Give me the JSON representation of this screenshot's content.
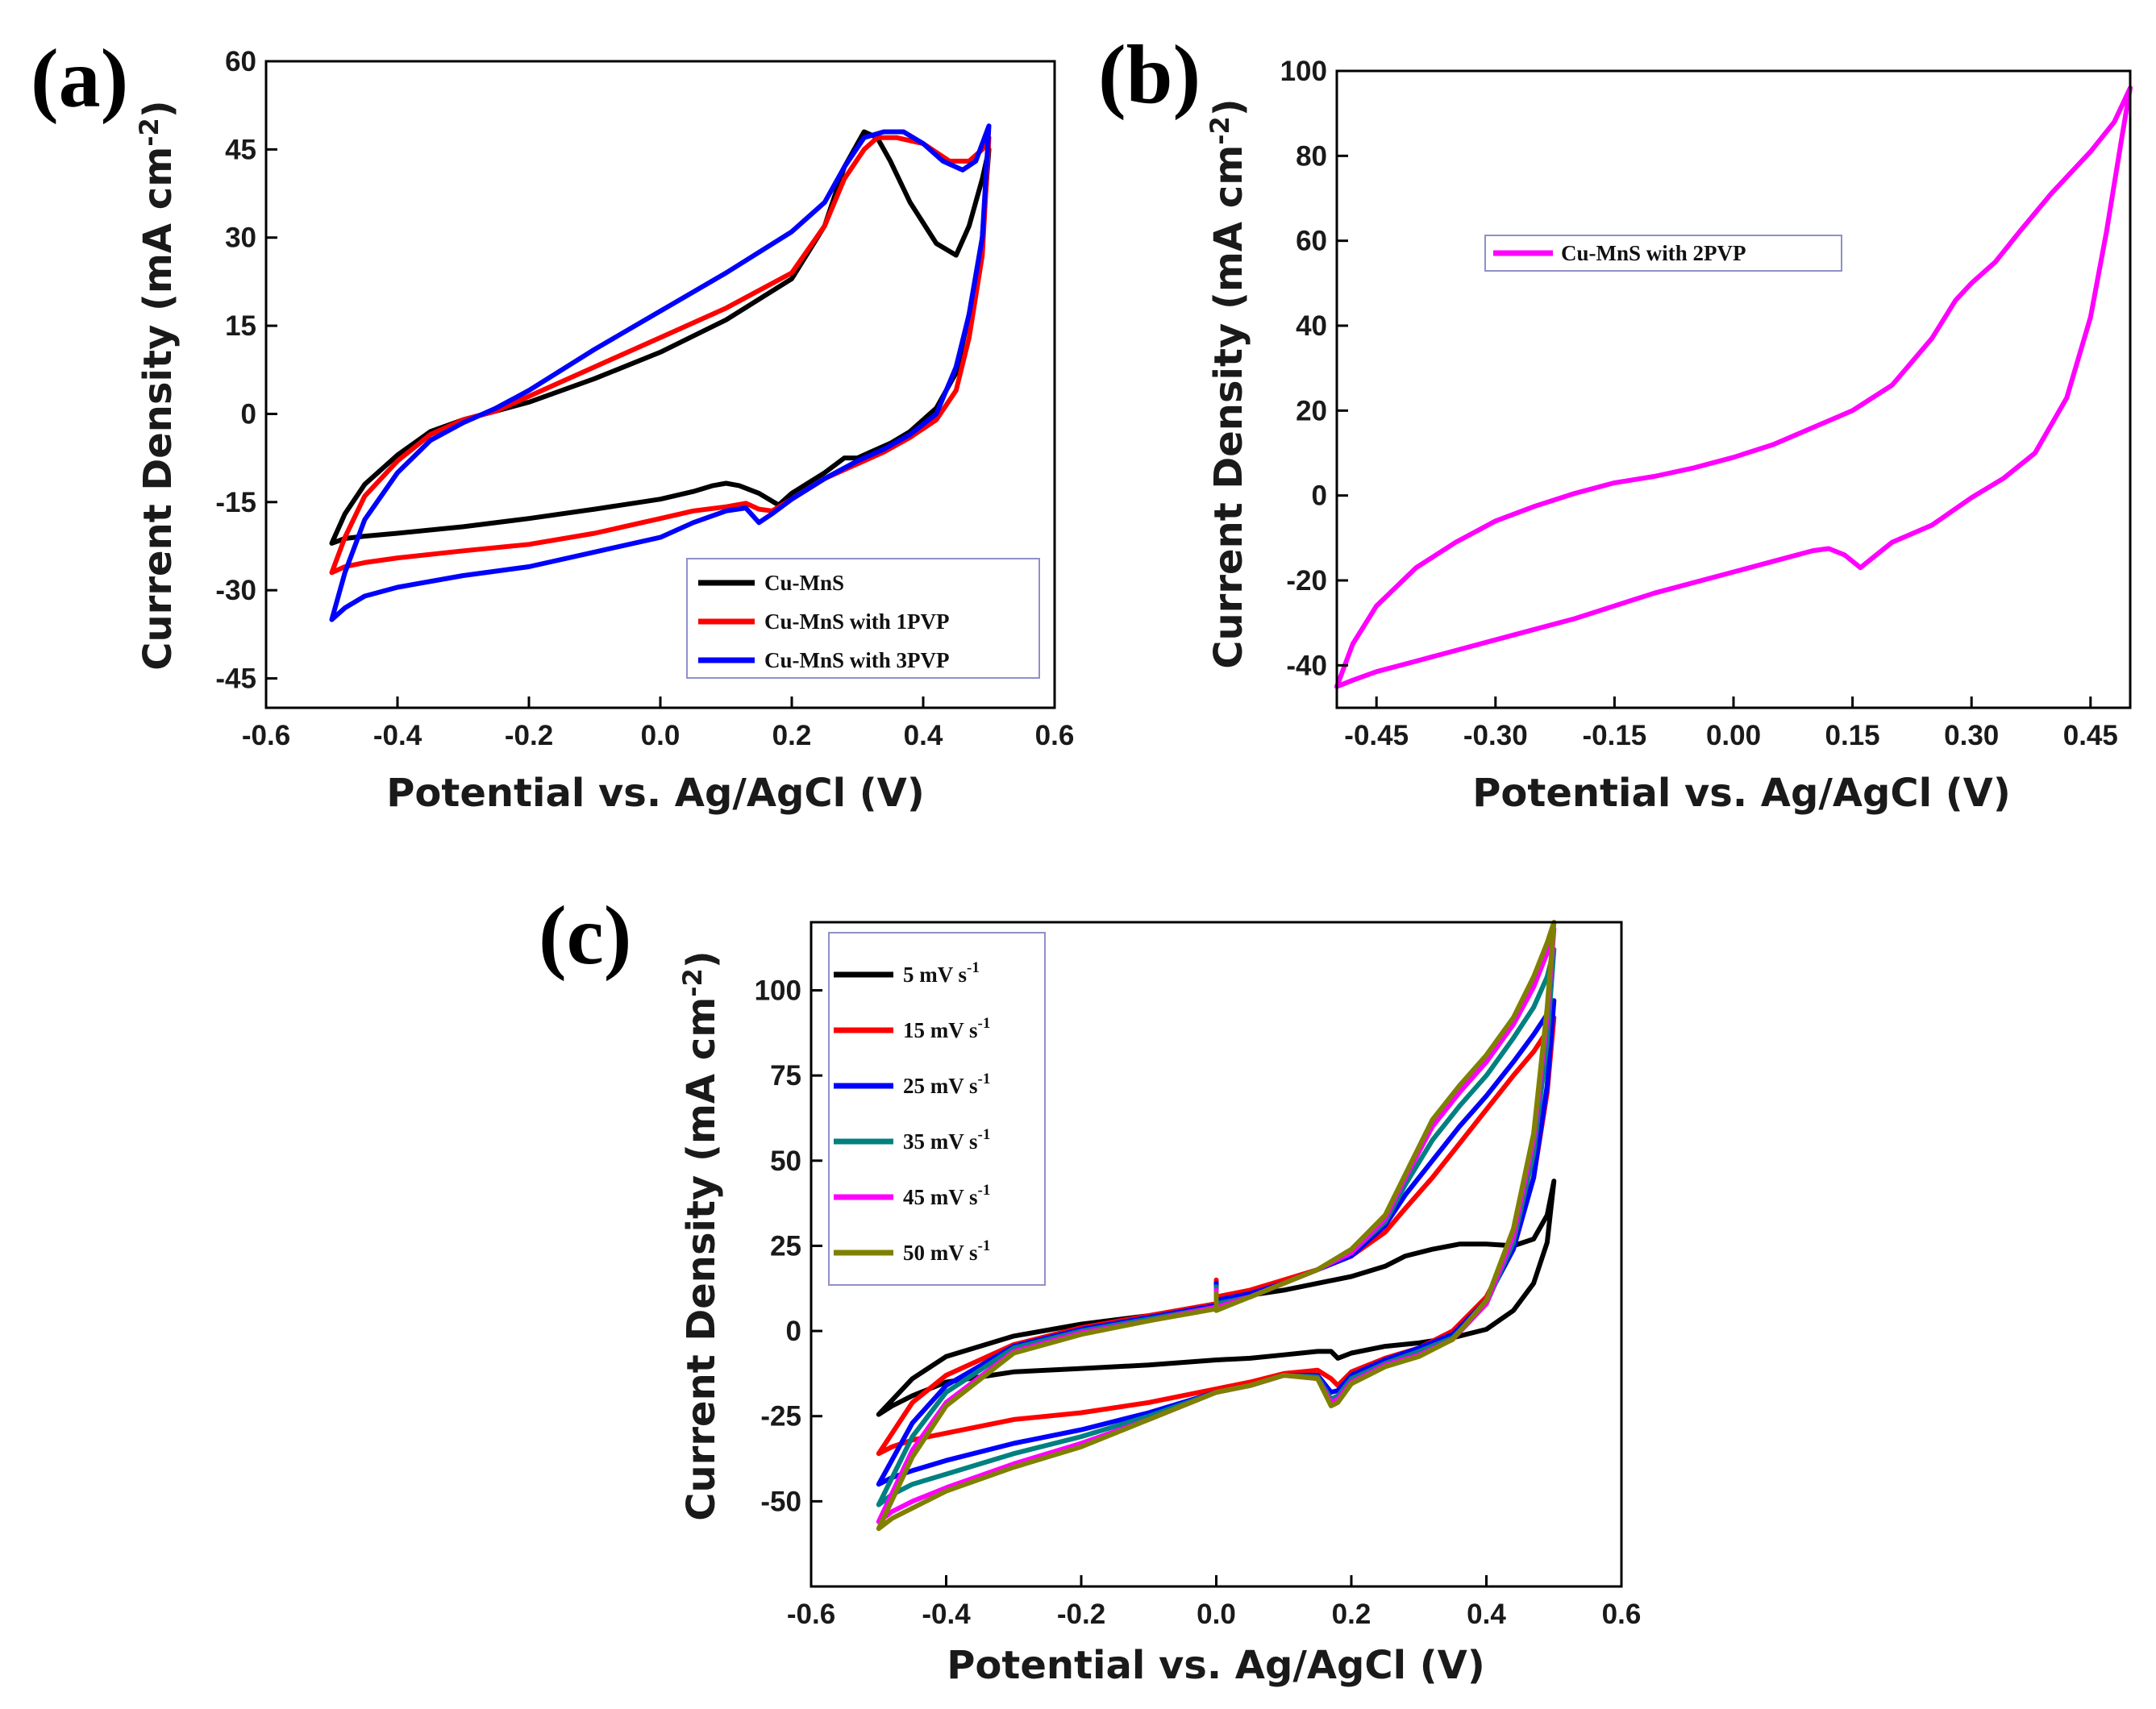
{
  "figure": {
    "background": "#ffffff"
  },
  "chart_data": [
    {
      "id": "a",
      "type": "line",
      "panel_label": "(a)",
      "xlabel": "Potential vs. Ag/AgCl (V)",
      "ylabel": "Current Density (mA cm",
      "ylabel_sup": "-2",
      "ylabel_close": ")",
      "xlim": [
        -0.6,
        0.6
      ],
      "ylim": [
        -50,
        60
      ],
      "xticks": [
        -0.6,
        -0.4,
        -0.2,
        0.0,
        0.2,
        0.4,
        0.6
      ],
      "xtick_labels": [
        "-0.6",
        "-0.4",
        "-0.2",
        "0.0",
        "0.2",
        "0.4",
        "0.6"
      ],
      "yticks": [
        -45,
        -30,
        -15,
        0,
        15,
        30,
        45,
        60
      ],
      "ytick_labels": [
        "-45",
        "-30",
        "-15",
        "0",
        "15",
        "30",
        "45",
        "60"
      ],
      "legend": {
        "position": "bottom-right"
      },
      "series": [
        {
          "name": "Cu-MnS",
          "label": "Cu-MnS",
          "color": "#000000",
          "x": [
            -0.5,
            -0.48,
            -0.45,
            -0.4,
            -0.35,
            -0.3,
            -0.25,
            -0.2,
            -0.1,
            0.0,
            0.1,
            0.2,
            0.25,
            0.28,
            0.31,
            0.33,
            0.35,
            0.38,
            0.42,
            0.45,
            0.47,
            0.49,
            0.5,
            0.49,
            0.47,
            0.45,
            0.42,
            0.38,
            0.35,
            0.32,
            0.3,
            0.28,
            0.25,
            0.2,
            0.18,
            0.15,
            0.12,
            0.1,
            0.08,
            0.05,
            0.0,
            -0.1,
            -0.2,
            -0.3,
            -0.4,
            -0.45,
            -0.48,
            -0.5
          ],
          "y": [
            -22,
            -17,
            -12,
            -7,
            -3,
            -1,
            0.5,
            2,
            6,
            10.5,
            16,
            23,
            32,
            42,
            48,
            47,
            43,
            36,
            29,
            27,
            32,
            40,
            45,
            30,
            17,
            7,
            1,
            -3,
            -5,
            -6.5,
            -7.5,
            -7.5,
            -10,
            -13.5,
            -15.5,
            -13.5,
            -12.2,
            -11.8,
            -12.2,
            -13.2,
            -14.5,
            -16.2,
            -17.8,
            -19.2,
            -20.3,
            -20.8,
            -21.2,
            -22
          ]
        },
        {
          "name": "Cu-MnS with 1PVP",
          "label": "Cu-MnS with 1PVP",
          "color": "#ff0000",
          "x": [
            -0.5,
            -0.48,
            -0.45,
            -0.4,
            -0.35,
            -0.3,
            -0.25,
            -0.2,
            -0.1,
            0.0,
            0.1,
            0.2,
            0.25,
            0.28,
            0.31,
            0.33,
            0.36,
            0.4,
            0.44,
            0.47,
            0.49,
            0.5,
            0.49,
            0.47,
            0.45,
            0.42,
            0.38,
            0.34,
            0.3,
            0.25,
            0.2,
            0.17,
            0.15,
            0.13,
            0.1,
            0.05,
            0.0,
            -0.1,
            -0.2,
            -0.3,
            -0.4,
            -0.45,
            -0.48,
            -0.5
          ],
          "y": [
            -27,
            -21,
            -14,
            -8,
            -3.5,
            -1,
            0.5,
            3,
            8,
            13,
            18,
            24,
            32,
            40,
            45,
            47,
            47,
            46,
            43,
            43,
            45,
            47,
            27,
            13,
            4,
            -1,
            -4,
            -6.5,
            -8.5,
            -11,
            -14.5,
            -16.5,
            -16.2,
            -15.2,
            -15.8,
            -16.5,
            -17.8,
            -20.3,
            -22.2,
            -23.3,
            -24.5,
            -25.3,
            -26,
            -27
          ]
        },
        {
          "name": "Cu-MnS with 3PVP",
          "label": "Cu-MnS with 3PVP",
          "color": "#0000ff",
          "x": [
            -0.5,
            -0.48,
            -0.45,
            -0.4,
            -0.35,
            -0.3,
            -0.25,
            -0.2,
            -0.1,
            0.0,
            0.1,
            0.2,
            0.25,
            0.28,
            0.31,
            0.34,
            0.37,
            0.4,
            0.43,
            0.46,
            0.48,
            0.5,
            0.49,
            0.47,
            0.45,
            0.42,
            0.38,
            0.34,
            0.3,
            0.25,
            0.2,
            0.17,
            0.15,
            0.13,
            0.1,
            0.05,
            0.0,
            -0.1,
            -0.2,
            -0.3,
            -0.4,
            -0.45,
            -0.48,
            -0.5
          ],
          "y": [
            -35,
            -27,
            -18,
            -10,
            -4.5,
            -1.5,
            1,
            4,
            11,
            17.5,
            24,
            31,
            36,
            42,
            47,
            48,
            48,
            46,
            43,
            41.5,
            43,
            49,
            30,
            17,
            8,
            0,
            -3.5,
            -6,
            -8,
            -11,
            -14.5,
            -17,
            -18.5,
            -16,
            -16.5,
            -18.5,
            -21,
            -23.5,
            -26,
            -27.5,
            -29.5,
            -31,
            -33,
            -35
          ]
        }
      ]
    },
    {
      "id": "b",
      "type": "line",
      "panel_label": "(b)",
      "xlabel": "Potential vs. Ag/AgCl (V)",
      "ylabel": "Current Density (mA cm",
      "ylabel_sup": "-2",
      "ylabel_close": ")",
      "xlim": [
        -0.5,
        0.5
      ],
      "ylim": [
        -50,
        100
      ],
      "xticks": [
        -0.45,
        -0.3,
        -0.15,
        0.0,
        0.15,
        0.3,
        0.45
      ],
      "xtick_labels": [
        "-0.45",
        "-0.30",
        "-0.15",
        "0.00",
        "0.15",
        "0.30",
        "0.45"
      ],
      "yticks": [
        -40,
        -20,
        0,
        20,
        40,
        60,
        80,
        100
      ],
      "ytick_labels": [
        "-40",
        "-20",
        "0",
        "20",
        "40",
        "60",
        "80",
        "100"
      ],
      "legend": {
        "position": "upper-middle"
      },
      "series": [
        {
          "name": "Cu-MnS with 2PVP",
          "label": "Cu-MnS with 2PVP",
          "color": "#ff00ff",
          "x": [
            -0.5,
            -0.48,
            -0.45,
            -0.4,
            -0.35,
            -0.3,
            -0.25,
            -0.2,
            -0.15,
            -0.1,
            -0.05,
            0.0,
            0.05,
            0.1,
            0.15,
            0.2,
            0.25,
            0.28,
            0.3,
            0.33,
            0.36,
            0.4,
            0.45,
            0.48,
            0.5,
            0.49,
            0.47,
            0.45,
            0.42,
            0.38,
            0.34,
            0.3,
            0.25,
            0.2,
            0.18,
            0.16,
            0.14,
            0.12,
            0.1,
            0.05,
            0.0,
            -0.1,
            -0.2,
            -0.3,
            -0.4,
            -0.45,
            -0.48,
            -0.5
          ],
          "y": [
            -45,
            -35,
            -26,
            -17,
            -11,
            -6,
            -2.5,
            0.5,
            3,
            4.5,
            6.5,
            9,
            12,
            16,
            20,
            26,
            37,
            46,
            50,
            55,
            62,
            71,
            81,
            88,
            96,
            85,
            62,
            42,
            23,
            10,
            4,
            -0.5,
            -7,
            -11,
            -14,
            -17,
            -14,
            -12.5,
            -13,
            -15.5,
            -18,
            -23,
            -29,
            -34,
            -39,
            -41.5,
            -43.5,
            -45
          ]
        }
      ]
    },
    {
      "id": "c",
      "type": "line",
      "panel_label": "(c)",
      "xlabel": "Potential vs. Ag/AgCl (V)",
      "ylabel": "Current Density (mA cm",
      "ylabel_sup": "-2",
      "ylabel_close": ")",
      "xlim": [
        -0.6,
        0.6
      ],
      "ylim": [
        -75,
        120
      ],
      "xticks": [
        -0.6,
        -0.4,
        -0.2,
        0.0,
        0.2,
        0.4,
        0.6
      ],
      "xtick_labels": [
        "-0.6",
        "-0.4",
        "-0.2",
        "0.0",
        "0.2",
        "0.4",
        "0.6"
      ],
      "yticks": [
        -50,
        -25,
        0,
        25,
        50,
        75,
        100
      ],
      "ytick_labels": [
        "-50",
        "-25",
        "0",
        "25",
        "50",
        "75",
        "100"
      ],
      "legend": {
        "position": "top-left"
      },
      "series": [
        {
          "name": "5 mV s-1",
          "label": "5 mV s",
          "label_sup": "-1",
          "color": "#000000",
          "x": [
            0.0,
            0.0,
            0.05,
            0.1,
            0.15,
            0.2,
            0.25,
            0.28,
            0.32,
            0.36,
            0.4,
            0.44,
            0.47,
            0.49,
            0.5,
            0.49,
            0.47,
            0.44,
            0.4,
            0.35,
            0.3,
            0.25,
            0.2,
            0.18,
            0.17,
            0.15,
            0.1,
            0.05,
            0.0,
            -0.1,
            -0.2,
            -0.3,
            -0.4,
            -0.45,
            -0.48,
            -0.5,
            -0.45,
            -0.4,
            -0.3,
            -0.2,
            -0.1,
            0.0
          ],
          "y": [
            13,
            10,
            10.5,
            12,
            14,
            16,
            19,
            22,
            24,
            25.5,
            25.5,
            25,
            27,
            34,
            44,
            26,
            14,
            6,
            0.5,
            -2,
            -3.5,
            -4.5,
            -6.5,
            -8,
            -6,
            -6,
            -7,
            -8,
            -8.5,
            -10,
            -11,
            -12,
            -15,
            -19,
            -22,
            -24.5,
            -14,
            -7.5,
            -1.5,
            2,
            4.5,
            8
          ]
        },
        {
          "name": "15 mV s-1",
          "label": "15 mV s",
          "label_sup": "-1",
          "color": "#ff0000",
          "x": [
            0.0,
            0.0,
            0.05,
            0.1,
            0.15,
            0.2,
            0.25,
            0.28,
            0.32,
            0.36,
            0.4,
            0.44,
            0.47,
            0.49,
            0.5,
            0.49,
            0.47,
            0.44,
            0.4,
            0.35,
            0.3,
            0.25,
            0.2,
            0.18,
            0.17,
            0.15,
            0.1,
            0.05,
            0.0,
            -0.1,
            -0.2,
            -0.3,
            -0.4,
            -0.45,
            -0.48,
            -0.5,
            -0.45,
            -0.4,
            -0.3,
            -0.2,
            -0.1,
            0.0
          ],
          "y": [
            15,
            10,
            12,
            15,
            18,
            22,
            29,
            36,
            45,
            55,
            65,
            75,
            82,
            88,
            92,
            70,
            45,
            25,
            10,
            0,
            -5,
            -8,
            -12,
            -16,
            -14,
            -11.5,
            -12.5,
            -15,
            -17,
            -21,
            -24,
            -26,
            -30,
            -32,
            -34,
            -36,
            -21,
            -13,
            -4,
            1,
            4.5,
            8
          ]
        },
        {
          "name": "25 mV s-1",
          "label": "25 mV s",
          "label_sup": "-1",
          "color": "#0000ff",
          "x": [
            0.0,
            0.0,
            0.05,
            0.1,
            0.15,
            0.2,
            0.25,
            0.28,
            0.32,
            0.36,
            0.4,
            0.44,
            0.47,
            0.49,
            0.5,
            0.49,
            0.47,
            0.44,
            0.4,
            0.35,
            0.3,
            0.25,
            0.2,
            0.18,
            0.17,
            0.15,
            0.1,
            0.05,
            0.0,
            -0.1,
            -0.2,
            -0.3,
            -0.4,
            -0.45,
            -0.48,
            -0.5,
            -0.45,
            -0.4,
            -0.3,
            -0.2,
            -0.1,
            0.0
          ],
          "y": [
            14,
            9,
            11,
            14,
            18,
            22,
            31,
            40,
            50,
            60,
            69,
            79,
            87,
            93,
            97,
            72,
            45,
            24,
            9,
            -1,
            -5,
            -8.5,
            -13,
            -17.5,
            -18,
            -13,
            -13,
            -16,
            -18,
            -24,
            -29,
            -33,
            -38,
            -41,
            -43,
            -45,
            -27,
            -16,
            -4.5,
            0.5,
            4,
            7.5
          ]
        },
        {
          "name": "35 mV s-1",
          "label": "35 mV s",
          "label_sup": "-1",
          "color": "#008080",
          "x": [
            0.0,
            0.0,
            0.05,
            0.1,
            0.15,
            0.2,
            0.25,
            0.28,
            0.32,
            0.36,
            0.4,
            0.44,
            0.47,
            0.49,
            0.5,
            0.49,
            0.47,
            0.44,
            0.4,
            0.35,
            0.3,
            0.25,
            0.2,
            0.18,
            0.17,
            0.15,
            0.1,
            0.05,
            0.0,
            -0.1,
            -0.2,
            -0.3,
            -0.4,
            -0.45,
            -0.48,
            -0.5,
            -0.45,
            -0.4,
            -0.3,
            -0.2,
            -0.1,
            0.0
          ],
          "y": [
            13,
            8,
            10,
            14,
            18,
            23,
            32,
            43,
            56,
            66,
            75,
            86,
            95,
            104,
            112,
            85,
            52,
            26,
            8,
            -2,
            -6,
            -9.5,
            -14,
            -19,
            -20,
            -13.5,
            -13,
            -16,
            -18,
            -25,
            -31,
            -36,
            -42,
            -45,
            -48,
            -51,
            -31,
            -18,
            -5,
            0,
            3.5,
            7
          ]
        },
        {
          "name": "45 mV s-1",
          "label": "45 mV s",
          "label_sup": "-1",
          "color": "#ff00ff",
          "x": [
            0.0,
            0.0,
            0.05,
            0.1,
            0.15,
            0.2,
            0.25,
            0.28,
            0.32,
            0.36,
            0.4,
            0.44,
            0.47,
            0.49,
            0.5,
            0.49,
            0.47,
            0.44,
            0.4,
            0.35,
            0.3,
            0.25,
            0.2,
            0.18,
            0.17,
            0.15,
            0.1,
            0.05,
            0.0,
            -0.1,
            -0.2,
            -0.3,
            -0.4,
            -0.45,
            -0.48,
            -0.5,
            -0.45,
            -0.4,
            -0.3,
            -0.2,
            -0.1,
            0.0
          ],
          "y": [
            12,
            7,
            10,
            14,
            18,
            23,
            33,
            45,
            60,
            70,
            79,
            90,
            101,
            111,
            118,
            92,
            56,
            28,
            8,
            -2.5,
            -7,
            -10,
            -15,
            -20,
            -21,
            -14,
            -13,
            -16,
            -18,
            -26,
            -33,
            -39,
            -46,
            -50,
            -53,
            -56,
            -35,
            -21,
            -6,
            -0.5,
            3,
            7
          ]
        },
        {
          "name": "50 mV s-1",
          "label": "50 mV s",
          "label_sup": "-1",
          "color": "#808000",
          "x": [
            0.0,
            0.0,
            0.05,
            0.1,
            0.15,
            0.2,
            0.25,
            0.28,
            0.32,
            0.36,
            0.4,
            0.44,
            0.47,
            0.49,
            0.5,
            0.49,
            0.47,
            0.44,
            0.4,
            0.35,
            0.3,
            0.25,
            0.2,
            0.18,
            0.17,
            0.15,
            0.1,
            0.05,
            0.0,
            -0.1,
            -0.2,
            -0.3,
            -0.4,
            -0.45,
            -0.48,
            -0.5,
            -0.45,
            -0.4,
            -0.3,
            -0.2,
            -0.1,
            0.0
          ],
          "y": [
            11,
            6,
            10,
            14,
            18,
            24,
            34,
            46,
            62,
            72,
            81,
            92,
            104,
            114,
            120,
            95,
            58,
            30,
            9,
            -2.5,
            -7.5,
            -10.5,
            -15.5,
            -21,
            -22,
            -14,
            -13,
            -16,
            -18,
            -26,
            -34,
            -40,
            -47,
            -52,
            -55,
            -58,
            -37,
            -22,
            -6.5,
            -1,
            3,
            6.5
          ]
        }
      ]
    }
  ]
}
